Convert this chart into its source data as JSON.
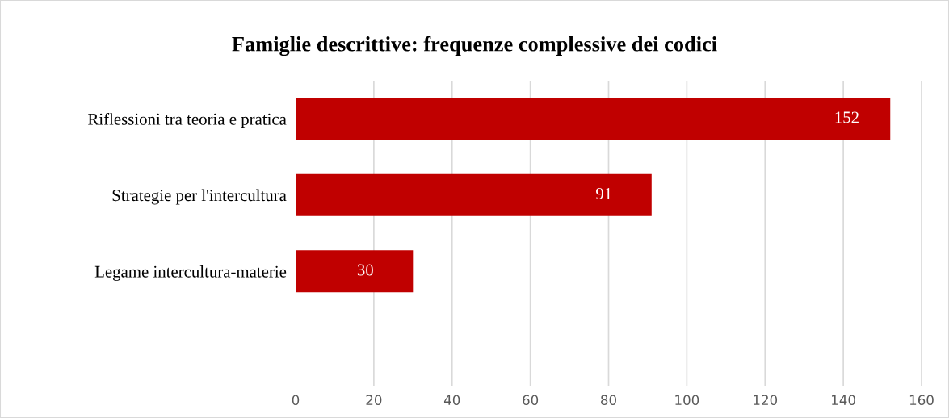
{
  "chart_data": {
    "type": "bar",
    "orientation": "horizontal",
    "title": "Famiglie descrittive: frequenze complessive dei codici",
    "categories": [
      "Riflessioni tra teoria e pratica",
      "Strategie per l'intercultura",
      "Legame intercultura-materie",
      null
    ],
    "values": [
      152,
      91,
      30,
      null
    ],
    "color": "#c00000",
    "xlim": [
      0,
      160
    ],
    "xticks": [
      0,
      20,
      40,
      60,
      80,
      100,
      120,
      140,
      160
    ],
    "grid": "x",
    "data_labels": true,
    "legend": false
  }
}
